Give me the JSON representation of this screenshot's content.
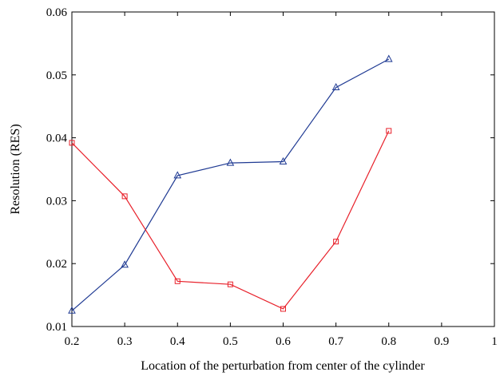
{
  "chart_data": {
    "type": "line",
    "title": "",
    "xlabel": "Location of the perturbation from center of the cylinder",
    "ylabel": "Resolution (RES)",
    "xlim": [
      0.2,
      1.0
    ],
    "ylim": [
      0.01,
      0.06
    ],
    "x_ticks": [
      "0.2",
      "0.3",
      "0.4",
      "0.5",
      "0.6",
      "0.7",
      "0.8",
      "0.9",
      "1"
    ],
    "y_ticks": [
      "0.01",
      "0.02",
      "0.03",
      "0.04",
      "0.05",
      "0.06"
    ],
    "grid": false,
    "series": [
      {
        "color": "#1f3a93",
        "marker": "triangle",
        "x": [
          0.2,
          0.3,
          0.4,
          0.5,
          0.6,
          0.7,
          0.8
        ],
        "y": [
          0.0125,
          0.0198,
          0.034,
          0.036,
          0.0362,
          0.048,
          0.0525
        ]
      },
      {
        "color": "#e8202a",
        "marker": "square",
        "x": [
          0.2,
          0.3,
          0.4,
          0.5,
          0.6,
          0.7,
          0.8
        ],
        "y": [
          0.0392,
          0.0307,
          0.0172,
          0.0167,
          0.0128,
          0.0235,
          0.0411
        ]
      }
    ]
  }
}
